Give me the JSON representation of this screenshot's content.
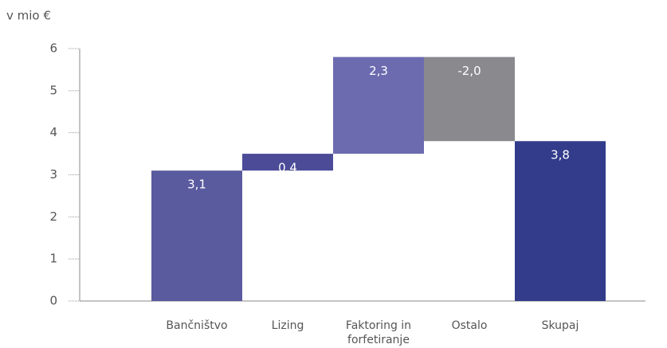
{
  "chart_data": {
    "type": "waterfall",
    "y_axis_label": "v mio €",
    "categories": [
      "Bančništvo",
      "Lizing",
      "Faktoring in forfetiranje",
      "Ostalo",
      "Skupaj"
    ],
    "values": [
      3.1,
      0.4,
      2.3,
      -2.0,
      3.8
    ],
    "value_labels": [
      "3,1",
      "0,4",
      "2,3",
      "-2,0",
      "3,8"
    ],
    "measure": [
      "relative",
      "relative",
      "relative",
      "relative",
      "total"
    ],
    "colors": [
      "#5a5a9f",
      "#4b4b98",
      "#6c6bb0",
      "#8a898e",
      "#323c8a"
    ],
    "ylim": [
      0,
      6
    ],
    "yticks": [
      0,
      1,
      2,
      3,
      4,
      5,
      6
    ]
  }
}
